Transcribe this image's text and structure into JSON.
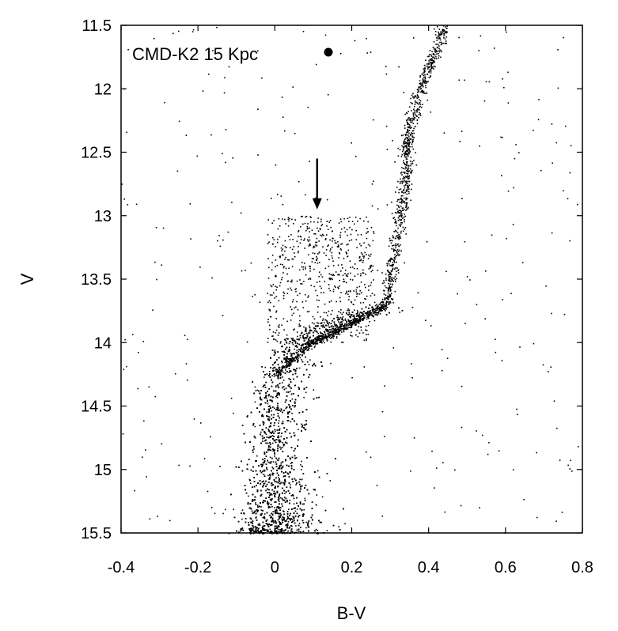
{
  "chart_data": {
    "type": "scatter",
    "title": "",
    "xlabel": "B-V",
    "ylabel": "V",
    "xlim": [
      -0.4,
      0.8
    ],
    "ylim": [
      11.5,
      15.5
    ],
    "y_inverted": true,
    "x_ticks": [
      "-0.4",
      "-0.2",
      "0",
      "0.2",
      "0.4",
      "0.6",
      "0.8"
    ],
    "y_ticks": [
      "11.5",
      "12",
      "12.5",
      "13",
      "13.5",
      "14",
      "14.5",
      "15",
      "15.5"
    ],
    "x_tick_values": [
      -0.4,
      -0.2,
      0,
      0.2,
      0.4,
      0.6,
      0.8
    ],
    "y_tick_values": [
      11.5,
      12,
      12.5,
      13,
      13.5,
      14,
      14.5,
      15,
      15.5
    ],
    "grid": false,
    "legend_position": "top-left",
    "series": [
      {
        "name": "CMD-K2 15 Kpc",
        "marker": "dot",
        "color": "#000000",
        "point_count_approx": 9000,
        "structure": {
          "main_sequence": [
            [
              -0.01,
              15.5
            ],
            [
              -0.01,
              15.2
            ],
            [
              -0.01,
              14.9
            ],
            [
              -0.005,
              14.6
            ],
            [
              0.0,
              14.3
            ],
            [
              0.02,
              14.1
            ],
            [
              0.06,
              13.97
            ],
            [
              0.12,
              13.88
            ],
            [
              0.18,
              13.8
            ],
            [
              0.24,
              13.74
            ],
            [
              0.28,
              13.7
            ]
          ],
          "main_sequence_spread": 0.03,
          "giant_branch": [
            [
              0.29,
              13.7
            ],
            [
              0.3,
              13.5
            ],
            [
              0.31,
              13.3
            ],
            [
              0.32,
              13.1
            ],
            [
              0.33,
              12.9
            ],
            [
              0.34,
              12.7
            ],
            [
              0.34,
              12.5
            ],
            [
              0.35,
              12.3
            ],
            [
              0.37,
              12.1
            ],
            [
              0.39,
              11.9
            ],
            [
              0.42,
              11.7
            ],
            [
              0.44,
              11.5
            ]
          ],
          "giant_branch_spread": 0.012,
          "blue_stragglers_region": {
            "x": [
              0.0,
              0.22
            ],
            "y": [
              12.9,
              14.0
            ]
          },
          "background_field": {
            "x": [
              -0.4,
              0.8
            ],
            "y": [
              11.5,
              15.5
            ]
          }
        }
      }
    ],
    "annotations": [
      {
        "type": "arrow",
        "direction": "down",
        "x": 0.11,
        "y_start": 12.55,
        "y_end": 12.95
      }
    ]
  }
}
